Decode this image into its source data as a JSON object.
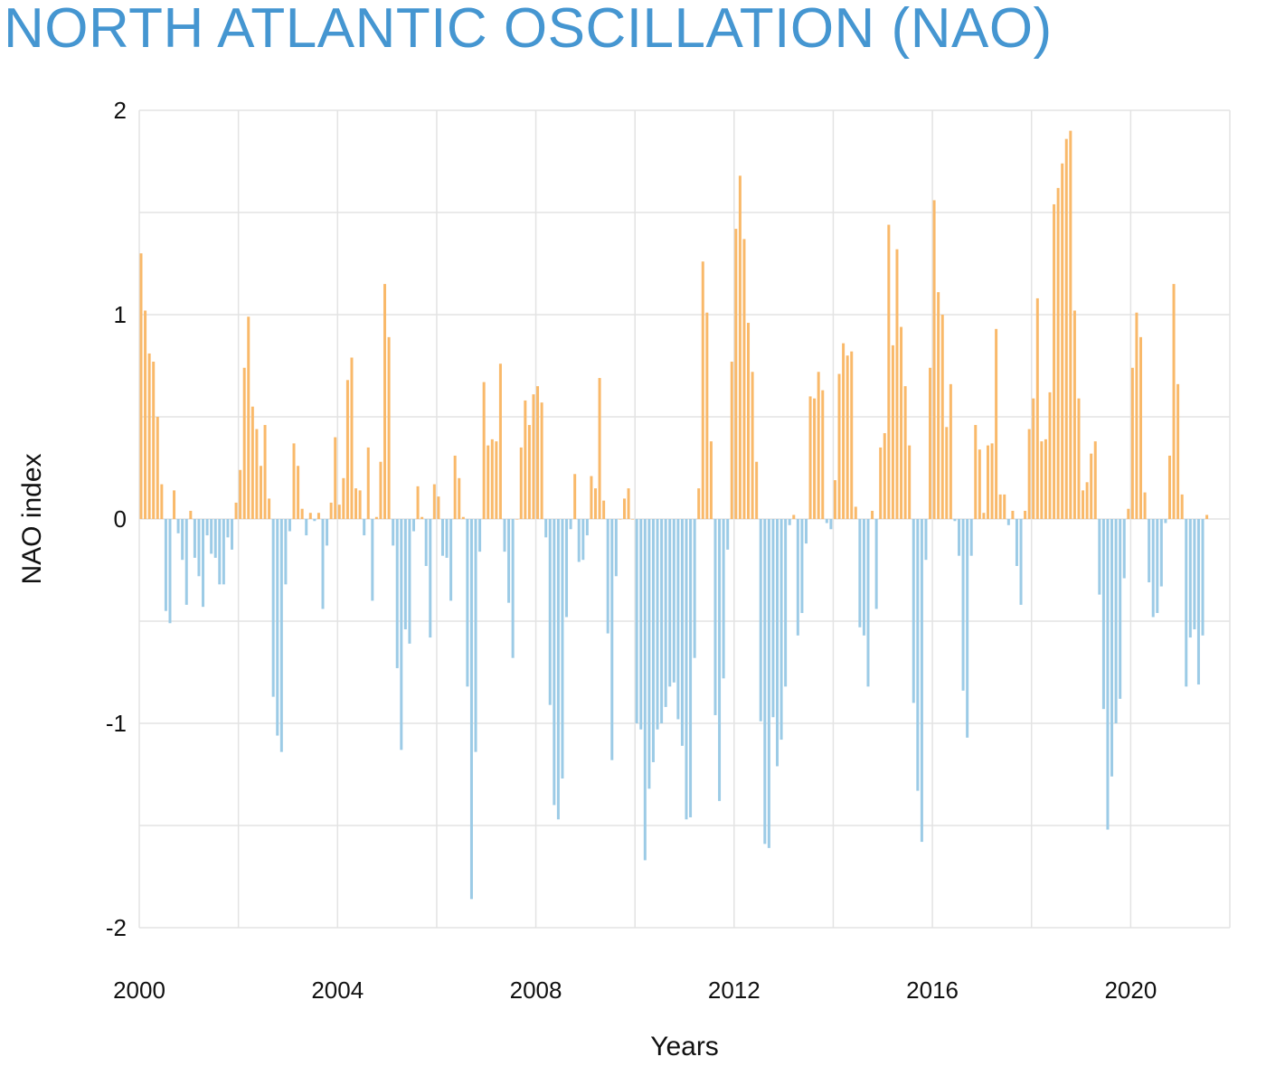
{
  "chart_data": {
    "type": "bar",
    "title": "NORTH ATLANTIC OSCILLATION (NAO)",
    "xlabel": "Years",
    "ylabel": "NAO index",
    "ylim": [
      -2,
      2
    ],
    "yticks": [
      "2",
      "1",
      "0",
      "-1",
      "-2"
    ],
    "ytick_values": [
      2,
      1,
      0,
      -1,
      -2
    ],
    "xticks": [
      "2000",
      "2004",
      "2008",
      "2012",
      "2016",
      "2020"
    ],
    "xtick_values": [
      2000,
      2004,
      2008,
      2012,
      2016,
      2020
    ],
    "x_start": 2000,
    "x_end": 2022,
    "grid": true,
    "frequency": "monthly",
    "start_month": "2000-01",
    "colors": {
      "positive": "#f9b96a",
      "negative": "#9ccbe6",
      "grid": "#e3e3e3",
      "title": "#4596d1"
    },
    "values": [
      1.3,
      1.02,
      0.81,
      0.77,
      0.5,
      0.17,
      -0.45,
      -0.51,
      0.14,
      -0.07,
      -0.2,
      -0.42,
      0.04,
      -0.19,
      -0.28,
      -0.43,
      -0.08,
      -0.17,
      -0.19,
      -0.32,
      -0.32,
      -0.09,
      -0.15,
      0.08,
      0.24,
      0.74,
      0.99,
      0.55,
      0.44,
      0.26,
      0.46,
      0.1,
      -0.87,
      -1.06,
      -1.14,
      -0.32,
      -0.06,
      0.37,
      0.26,
      0.05,
      -0.08,
      0.03,
      -0.01,
      0.03,
      -0.44,
      -0.13,
      0.08,
      0.4,
      0.07,
      0.2,
      0.68,
      0.79,
      0.15,
      0.14,
      -0.08,
      0.35,
      -0.4,
      0.01,
      0.28,
      1.15,
      0.89,
      -0.13,
      -0.73,
      -1.13,
      -0.54,
      -0.61,
      -0.06,
      0.16,
      0.01,
      -0.23,
      -0.58,
      0.17,
      0.11,
      -0.18,
      -0.19,
      -0.4,
      0.31,
      0.2,
      0.01,
      -0.82,
      -1.86,
      -1.14,
      -0.16,
      0.67,
      0.36,
      0.39,
      0.38,
      0.76,
      -0.16,
      -0.41,
      -0.68,
      0.0,
      0.35,
      0.58,
      0.46,
      0.61,
      0.65,
      0.57,
      -0.09,
      -0.91,
      -1.4,
      -1.47,
      -1.27,
      -0.48,
      -0.05,
      0.22,
      -0.21,
      -0.2,
      -0.08,
      0.21,
      0.15,
      0.69,
      0.09,
      -0.56,
      -1.18,
      -0.28,
      0.0,
      0.1,
      0.15,
      0.0,
      -1.0,
      -1.03,
      -1.67,
      -1.32,
      -1.19,
      -1.03,
      -1.0,
      -0.92,
      -0.82,
      -0.8,
      -0.98,
      -1.11,
      -1.47,
      -1.46,
      -0.68,
      0.15,
      1.26,
      1.01,
      0.38,
      -0.96,
      -1.38,
      -0.78,
      -0.15,
      0.77,
      1.42,
      1.68,
      1.37,
      0.96,
      0.72,
      0.28,
      -0.99,
      -1.59,
      -1.61,
      -0.97,
      -1.21,
      -1.08,
      -0.82,
      -0.03,
      0.02,
      -0.57,
      -0.46,
      -0.12,
      0.6,
      0.59,
      0.72,
      0.63,
      -0.02,
      -0.05,
      0.19,
      0.71,
      0.86,
      0.8,
      0.82,
      0.06,
      -0.53,
      -0.57,
      -0.82,
      0.04,
      -0.44,
      0.35,
      0.42,
      1.44,
      0.85,
      1.32,
      0.94,
      0.65,
      0.36,
      -0.9,
      -1.33,
      -1.58,
      -0.2,
      0.74,
      1.56,
      1.11,
      1.0,
      0.45,
      0.66,
      -0.01,
      -0.18,
      -0.84,
      -1.07,
      -0.18,
      0.46,
      0.34,
      0.03,
      0.36,
      0.37,
      0.93,
      0.12,
      0.12,
      -0.03,
      0.04,
      -0.23,
      -0.42,
      0.04,
      0.44,
      0.59,
      1.08,
      0.38,
      0.39,
      0.62,
      1.54,
      1.62,
      1.74,
      1.86,
      1.9,
      1.02,
      0.59,
      0.14,
      0.18,
      0.32,
      0.38,
      -0.37,
      -0.93,
      -1.52,
      -1.26,
      -1.0,
      -0.88,
      -0.29,
      0.05,
      0.74,
      1.01,
      0.89,
      0.13,
      -0.31,
      -0.48,
      -0.46,
      -0.33,
      -0.02,
      0.31,
      1.15,
      0.66,
      0.12,
      -0.82,
      -0.58,
      -0.54,
      -0.81,
      -0.57,
      0.02
    ]
  }
}
